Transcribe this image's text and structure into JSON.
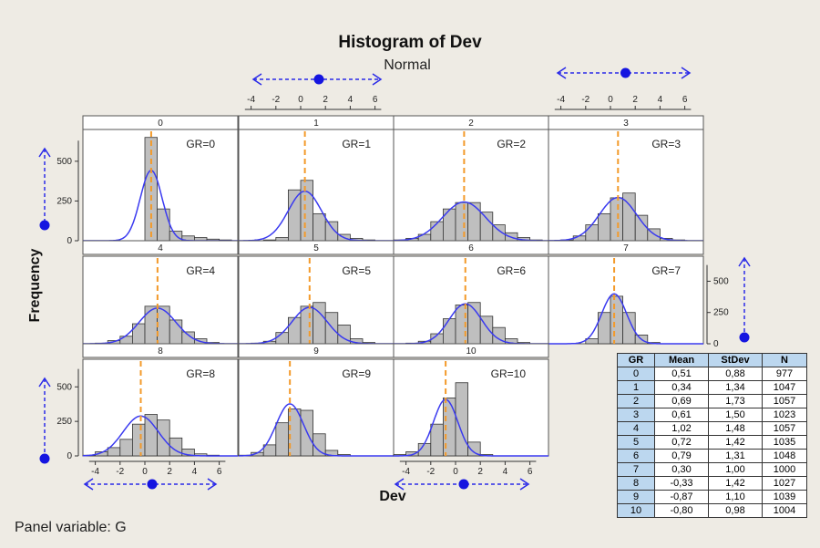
{
  "chart_data": {
    "type": "histogram-panel",
    "title": "Histogram of Dev",
    "subtitle": "Normal",
    "xlabel": "Dev",
    "ylabel": "Frequency",
    "panel_variable_label": "Panel variable: G",
    "xlim": [
      -5,
      7.5
    ],
    "ylim": [
      0,
      700
    ],
    "x_ticks": [
      -4,
      -2,
      0,
      2,
      4,
      6
    ],
    "y_ticks": [
      0,
      250,
      500
    ],
    "bin_edges": [
      -5,
      -4,
      -3,
      -2,
      -1,
      0,
      1,
      2,
      3,
      4,
      5,
      6,
      7
    ],
    "grid": false,
    "colors": {
      "bar_fill": "#bfbfbf",
      "bar_edge": "#333333",
      "curve": "#3a3af0",
      "median_line": "#f39a2a",
      "arrows": "#2a2ae8",
      "table_header": "#bcd7ef"
    },
    "panels": [
      {
        "strip": "0",
        "label": "GR=0",
        "mean": 0.51,
        "counts": [
          0,
          0,
          0,
          0,
          0,
          650,
          200,
          60,
          30,
          20,
          10,
          5
        ]
      },
      {
        "strip": "1",
        "label": "GR=1",
        "mean": 0.34,
        "counts": [
          0,
          0,
          5,
          20,
          320,
          380,
          170,
          120,
          40,
          15,
          5,
          0
        ]
      },
      {
        "strip": "2",
        "label": "GR=2",
        "mean": 0.69,
        "counts": [
          5,
          15,
          40,
          120,
          200,
          240,
          240,
          180,
          100,
          50,
          20,
          5
        ]
      },
      {
        "strip": "3",
        "label": "GR=3",
        "mean": 0.61,
        "counts": [
          0,
          5,
          30,
          100,
          170,
          270,
          300,
          160,
          75,
          15,
          5,
          0
        ]
      },
      {
        "strip": "4",
        "label": "GR=4",
        "mean": 1.02,
        "counts": [
          0,
          5,
          25,
          60,
          160,
          300,
          300,
          190,
          95,
          40,
          10,
          0
        ]
      },
      {
        "strip": "5",
        "label": "GR=5",
        "mean": 0.72,
        "counts": [
          0,
          5,
          20,
          90,
          210,
          300,
          330,
          250,
          150,
          40,
          10,
          0
        ]
      },
      {
        "strip": "6",
        "label": "GR=6",
        "mean": 0.79,
        "counts": [
          0,
          5,
          20,
          80,
          200,
          310,
          330,
          220,
          130,
          40,
          10,
          0
        ]
      },
      {
        "strip": "7",
        "label": "GR=7",
        "mean": 0.3,
        "counts": [
          0,
          0,
          0,
          40,
          250,
          380,
          250,
          70,
          10,
          0,
          0,
          0
        ]
      },
      {
        "strip": "8",
        "label": "GR=8",
        "mean": -0.33,
        "counts": [
          5,
          30,
          60,
          120,
          230,
          300,
          260,
          130,
          50,
          15,
          5,
          0
        ]
      },
      {
        "strip": "9",
        "label": "GR=9",
        "mean": -0.87,
        "counts": [
          5,
          25,
          80,
          240,
          340,
          330,
          160,
          40,
          10,
          0,
          0,
          0
        ]
      },
      {
        "strip": "10",
        "label": "GR=10",
        "mean": -0.8,
        "counts": [
          10,
          30,
          90,
          230,
          420,
          530,
          100,
          10,
          0,
          0,
          0,
          0
        ]
      }
    ],
    "summary_table": {
      "headers": [
        "GR",
        "Mean",
        "StDev",
        "N"
      ],
      "rows": [
        [
          "0",
          "0,51",
          "0,88",
          "977"
        ],
        [
          "1",
          "0,34",
          "1,34",
          "1047"
        ],
        [
          "2",
          "0,69",
          "1,73",
          "1057"
        ],
        [
          "3",
          "0,61",
          "1,50",
          "1023"
        ],
        [
          "4",
          "1,02",
          "1,48",
          "1057"
        ],
        [
          "5",
          "0,72",
          "1,42",
          "1035"
        ],
        [
          "6",
          "0,79",
          "1,31",
          "1048"
        ],
        [
          "7",
          "0,30",
          "1,00",
          "1000"
        ],
        [
          "8",
          "-0,33",
          "1,42",
          "1027"
        ],
        [
          "9",
          "-0,87",
          "1,10",
          "1039"
        ],
        [
          "10",
          "-0,80",
          "0,98",
          "1004"
        ]
      ]
    }
  }
}
